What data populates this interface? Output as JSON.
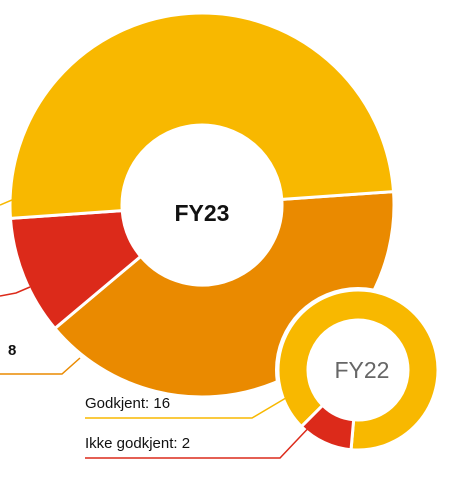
{
  "chart_data": [
    {
      "type": "pie",
      "title": "FY23",
      "categories": [
        null,
        null,
        null
      ],
      "values": [
        8,
        2,
        10
      ],
      "colors": [
        "#ea8a00",
        "#dc2a1a",
        "#f8b800"
      ]
    },
    {
      "type": "pie",
      "title": "FY22",
      "categories": [
        "Godkjent",
        "Ikke godkjent"
      ],
      "values": [
        16,
        2
      ],
      "labels": [
        "Godkjent: 16",
        "Ikke godkjent: 2"
      ],
      "colors": [
        "#f8b800",
        "#dc2a1a"
      ]
    }
  ]
}
